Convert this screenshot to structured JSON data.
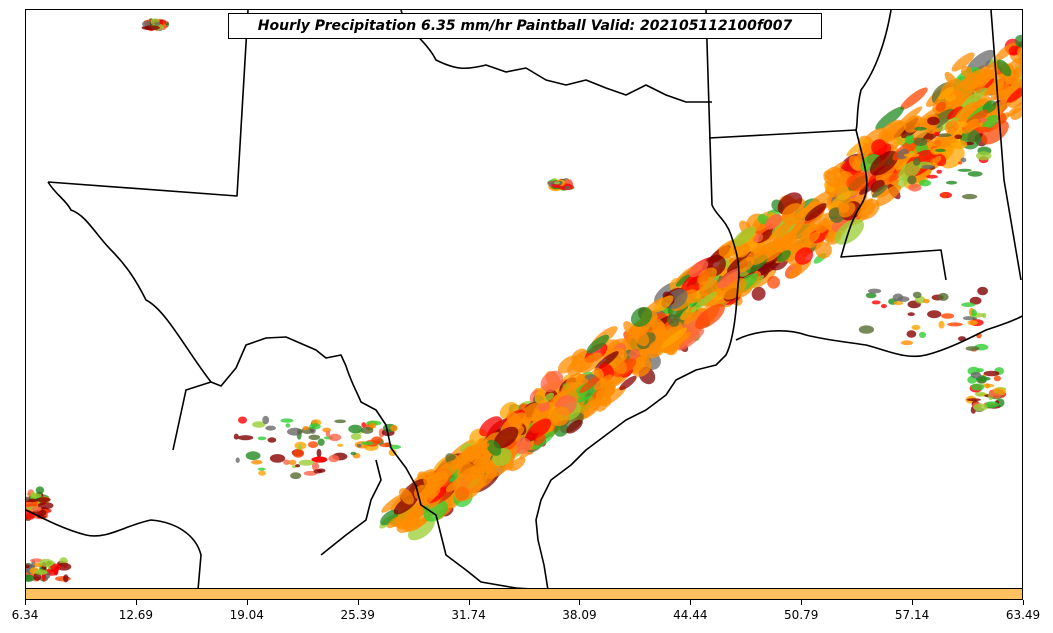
{
  "title": "Hourly Precipitation 6.35 mm/hr Paintball Valid: 202105112100f007",
  "colorbar": {
    "color": "#ffc060",
    "tick_labels": [
      "6.34",
      "12.69",
      "19.04",
      "25.39",
      "31.74",
      "38.09",
      "44.44",
      "50.79",
      "57.14",
      "63.49"
    ]
  },
  "paint_colors": [
    "#ff8c00",
    "#ff4500",
    "#ff0000",
    "#32cd32",
    "#228b22",
    "#800000",
    "#556b2f",
    "#ff6347",
    "#696969",
    "#ffa500",
    "#9acd32",
    "#8b0000"
  ]
}
